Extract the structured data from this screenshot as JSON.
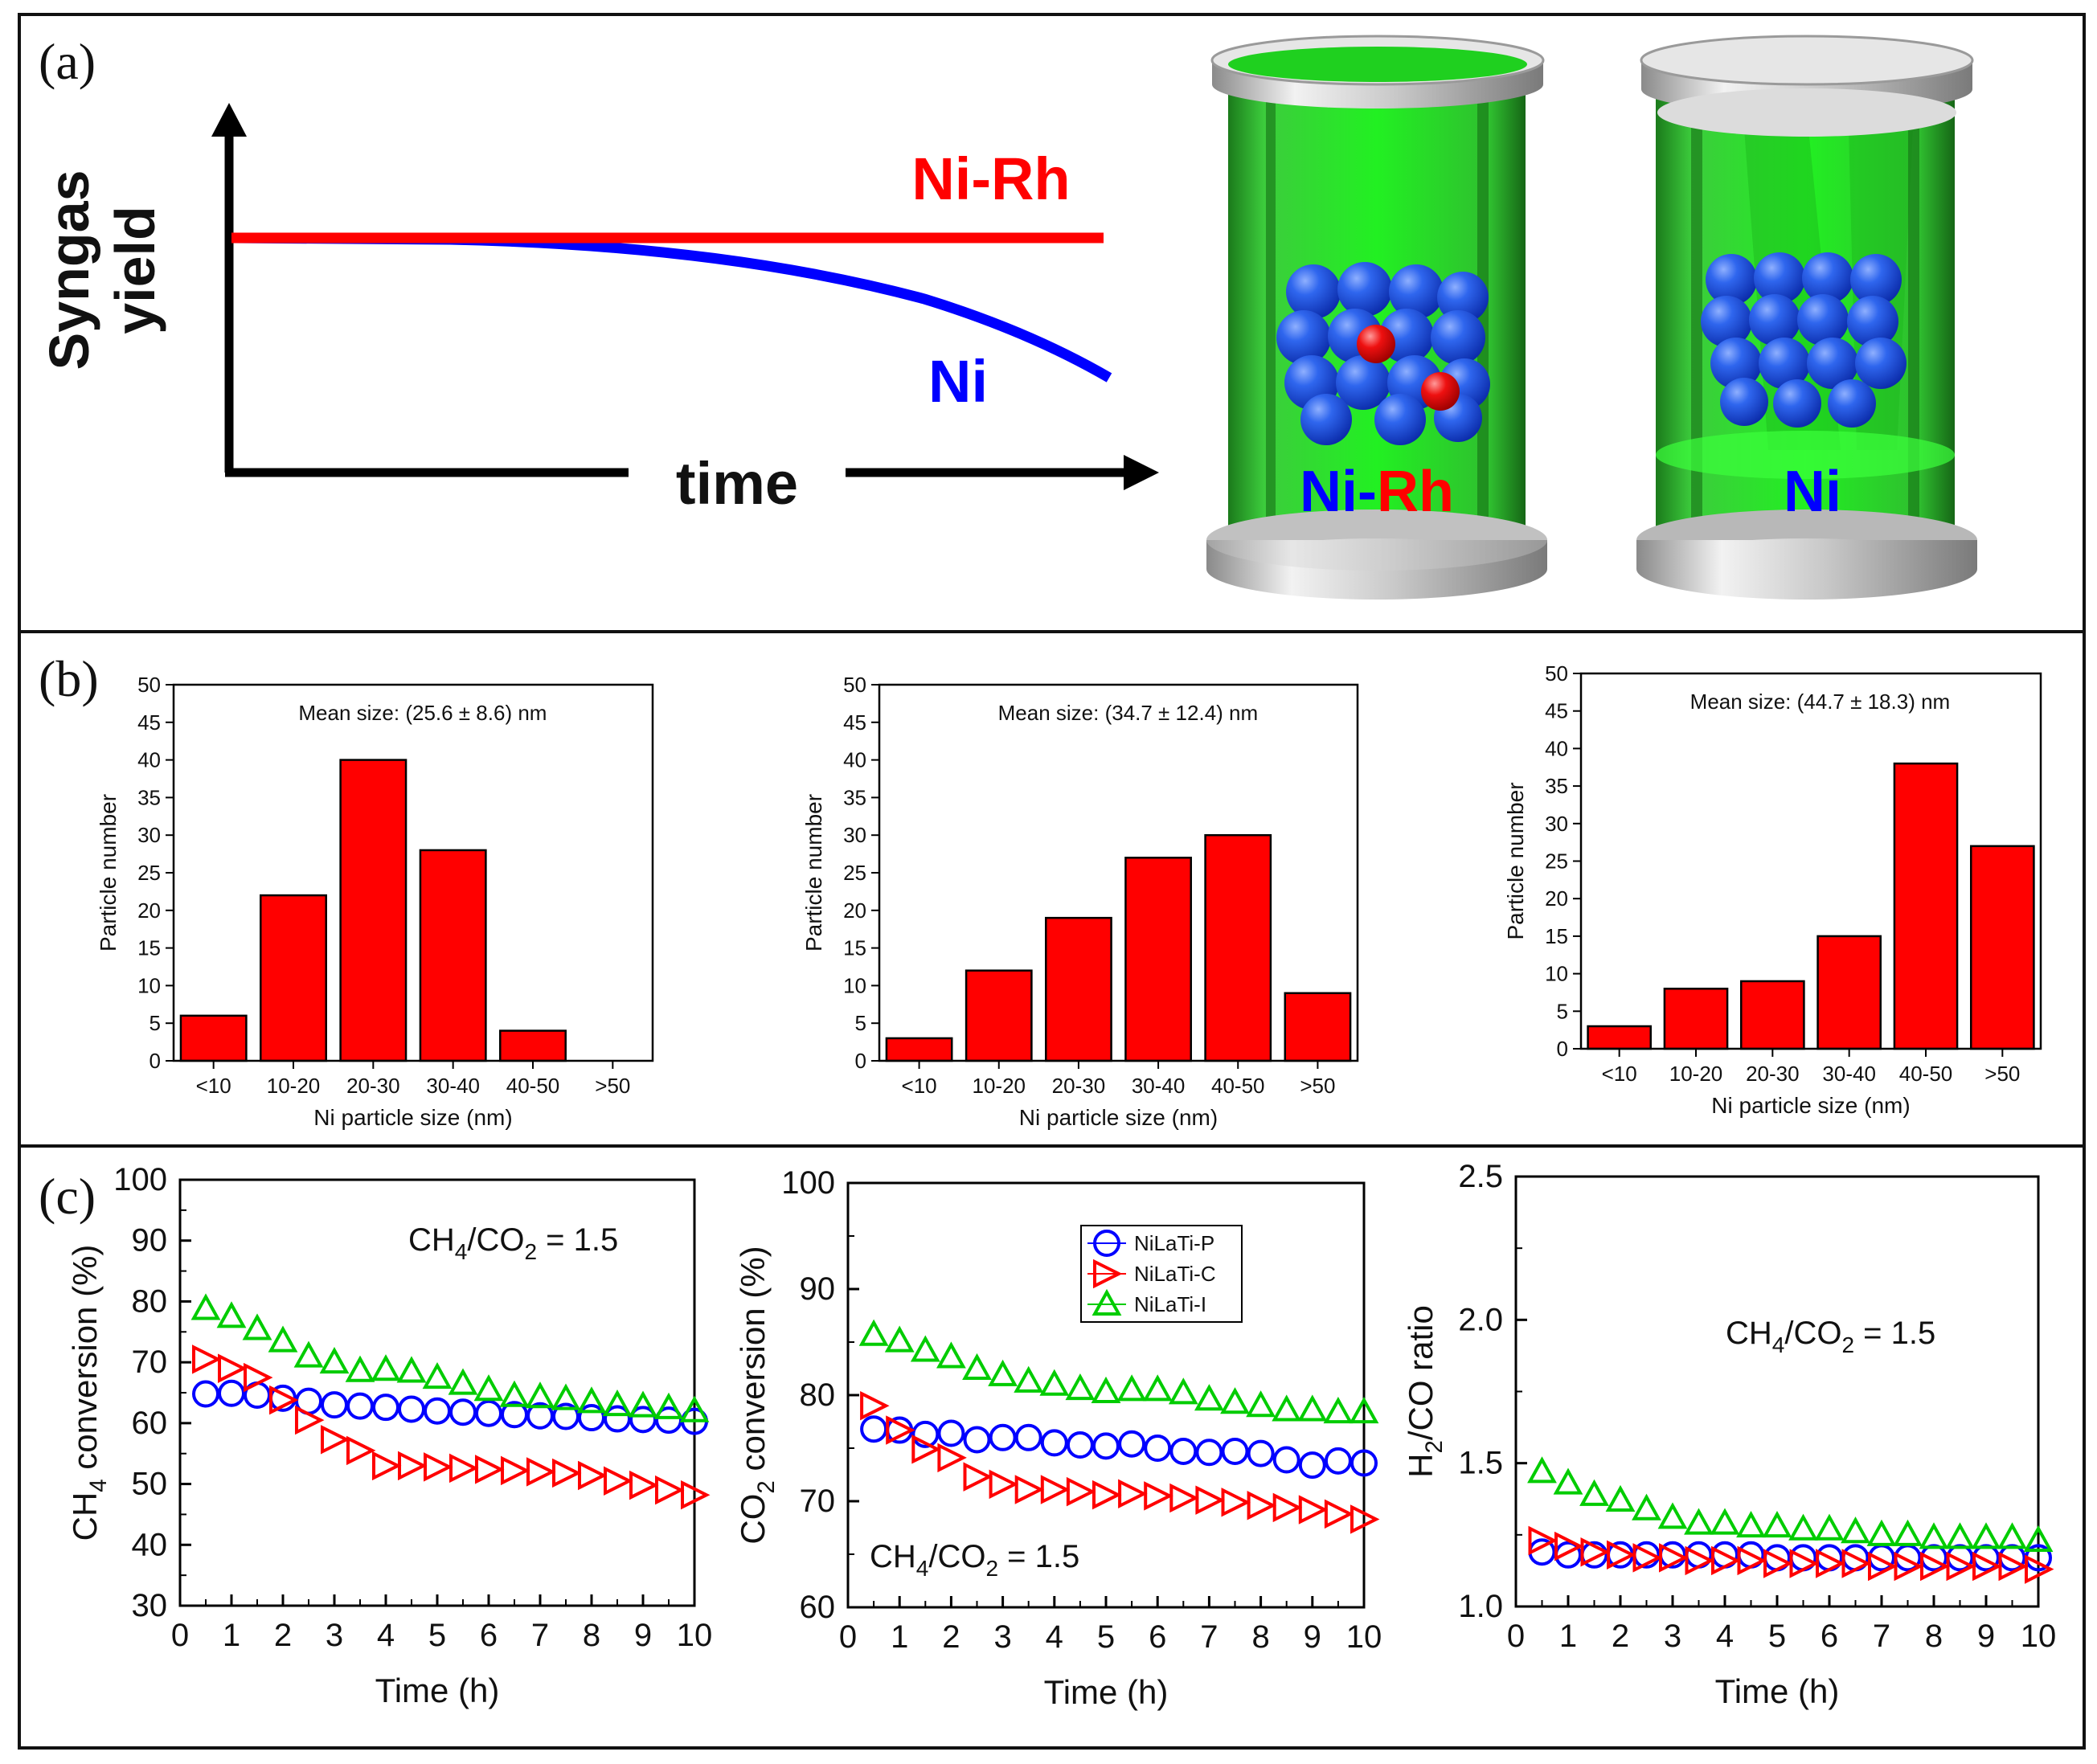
{
  "panels": {
    "a": {
      "label": "(a)"
    },
    "b": {
      "label": "(b)"
    },
    "c": {
      "label": "(c)"
    }
  },
  "schematic": {
    "y_axis_label_line1": "Syngas",
    "y_axis_label_line2": "yield",
    "x_axis_label": "time",
    "curves": [
      {
        "name": "Ni-Rh",
        "color": "#ff0000",
        "trend": "constant"
      },
      {
        "name": "Ni",
        "color": "#0000ff",
        "trend": "declining"
      }
    ],
    "reactors": [
      {
        "label_parts": [
          {
            "text": "Ni",
            "color": "#0000ff"
          },
          {
            "text": "-",
            "color": "#0000ff"
          },
          {
            "text": "Rh",
            "color": "#ff0000"
          }
        ]
      },
      {
        "label_parts": [
          {
            "text": "Ni",
            "color": "#0000ff"
          }
        ]
      }
    ],
    "colors": {
      "reactor_green": "#22ee22",
      "metal": "#c8c8c8",
      "ni_sphere": "#1f4fe0",
      "rh_sphere": "#e00000"
    }
  },
  "chart_data": [
    {
      "id": "hist-1",
      "type": "bar",
      "title": "",
      "annotation": "Mean size: (25.6 ± 8.6) nm",
      "categories": [
        "<10",
        "10-20",
        "20-30",
        "30-40",
        "40-50",
        ">50"
      ],
      "values": [
        6,
        22,
        40,
        28,
        4,
        0
      ],
      "xlabel": "Ni particle size (nm)",
      "ylabel": "Particle number",
      "ylim": [
        0,
        50
      ],
      "yticks": [
        "0",
        "5",
        "10",
        "15",
        "20",
        "25",
        "30",
        "35",
        "40",
        "45",
        "50"
      ],
      "bar_color": "#ff0000"
    },
    {
      "id": "hist-2",
      "type": "bar",
      "title": "",
      "annotation": "Mean size: (34.7 ± 12.4) nm",
      "categories": [
        "<10",
        "10-20",
        "20-30",
        "30-40",
        "40-50",
        ">50"
      ],
      "values": [
        3,
        12,
        19,
        27,
        30,
        9
      ],
      "xlabel": "Ni particle size (nm)",
      "ylabel": "Particle number",
      "ylim": [
        0,
        50
      ],
      "yticks": [
        "0",
        "5",
        "10",
        "15",
        "20",
        "25",
        "30",
        "35",
        "40",
        "45",
        "50"
      ],
      "bar_color": "#ff0000"
    },
    {
      "id": "hist-3",
      "type": "bar",
      "title": "",
      "annotation": "Mean size: (44.7 ± 18.3) nm",
      "categories": [
        "<10",
        "10-20",
        "20-30",
        "30-40",
        "40-50",
        ">50"
      ],
      "values": [
        3,
        8,
        9,
        15,
        38,
        27
      ],
      "xlabel": "Ni particle size (nm)",
      "ylabel": "Particle number",
      "ylim": [
        0,
        50
      ],
      "yticks": [
        "0",
        "5",
        "10",
        "15",
        "20",
        "25",
        "30",
        "35",
        "40",
        "45",
        "50"
      ],
      "bar_color": "#ff0000"
    },
    {
      "id": "ch4",
      "type": "scatter",
      "annotation_main": "CH",
      "annotation_sub": "4",
      "annotation_tail": "/CO",
      "annotation_sub2": "2",
      "annotation_end": " = 1.5",
      "ylabel_main": "CH",
      "ylabel_sub": "4",
      "ylabel_tail": " conversion (%)",
      "xlabel": "Time (h)",
      "xlim": [
        0,
        10
      ],
      "ylim": [
        30,
        100
      ],
      "xticks": [
        "0",
        "1",
        "2",
        "3",
        "4",
        "5",
        "6",
        "7",
        "8",
        "9",
        "10"
      ],
      "yticks": [
        "30",
        "40",
        "50",
        "60",
        "70",
        "80",
        "90",
        "100"
      ],
      "x": [
        0.5,
        1,
        1.5,
        2,
        2.5,
        3,
        3.5,
        4,
        4.5,
        5,
        5.5,
        6,
        6.5,
        7,
        7.5,
        8,
        8.5,
        9,
        9.5,
        10
      ],
      "series": [
        {
          "name": "NiLaTi-P",
          "marker": "circle",
          "color": "#0000ff",
          "values": [
            64.8,
            64.9,
            64.6,
            64.1,
            63.6,
            63.0,
            62.8,
            62.6,
            62.3,
            62.0,
            61.8,
            61.6,
            61.4,
            61.2,
            61.1,
            60.9,
            60.7,
            60.6,
            60.5,
            60.3
          ]
        },
        {
          "name": "NiLaTi-C",
          "marker": "triangle-right",
          "color": "#ff0000",
          "values": [
            70.5,
            69.0,
            67.5,
            63.8,
            60.5,
            57.3,
            55.5,
            53.0,
            53.0,
            52.8,
            52.6,
            52.4,
            52.2,
            52.0,
            51.8,
            51.4,
            50.5,
            49.8,
            49.0,
            48.2
          ]
        },
        {
          "name": "NiLaTi-I",
          "marker": "triangle-up",
          "color": "#00cc00",
          "values": [
            78.8,
            77.5,
            75.5,
            73.5,
            71.0,
            70.0,
            68.6,
            68.8,
            68.5,
            67.5,
            66.5,
            65.5,
            64.5,
            64.3,
            64.0,
            63.5,
            63.0,
            62.8,
            62.5,
            62.0
          ]
        }
      ]
    },
    {
      "id": "co2",
      "type": "scatter",
      "annotation_main": "CH",
      "annotation_sub": "4",
      "annotation_tail": "/CO",
      "annotation_sub2": "2",
      "annotation_end": " = 1.5",
      "ylabel_main": "CO",
      "ylabel_sub": "2",
      "ylabel_tail": " conversion (%)",
      "xlabel": "Time (h)",
      "xlim": [
        0,
        10
      ],
      "ylim": [
        60,
        100
      ],
      "xticks": [
        "0",
        "1",
        "2",
        "3",
        "4",
        "5",
        "6",
        "7",
        "8",
        "9",
        "10"
      ],
      "yticks": [
        "60",
        "70",
        "80",
        "90",
        "100"
      ],
      "legend": [
        "NiLaTi-P",
        "NiLaTi-C",
        "NiLaTi-I"
      ],
      "x": [
        0.5,
        1,
        1.5,
        2,
        2.5,
        3,
        3.5,
        4,
        4.5,
        5,
        5.5,
        6,
        6.5,
        7,
        7.5,
        8,
        8.5,
        9,
        9.5,
        10
      ],
      "series": [
        {
          "name": "NiLaTi-P",
          "marker": "circle",
          "color": "#0000ff",
          "values": [
            76.8,
            76.7,
            76.3,
            76.4,
            75.8,
            76.0,
            76.0,
            75.5,
            75.3,
            75.2,
            75.4,
            75.0,
            74.7,
            74.6,
            74.7,
            74.5,
            73.9,
            73.4,
            73.8,
            73.6
          ]
        },
        {
          "name": "NiLaTi-C",
          "marker": "triangle-right",
          "color": "#ff0000",
          "values": [
            79.0,
            76.7,
            74.9,
            74.1,
            72.3,
            71.6,
            71.1,
            71.1,
            70.9,
            70.6,
            70.7,
            70.5,
            70.3,
            70.1,
            69.9,
            69.6,
            69.4,
            69.2,
            68.8,
            68.3
          ]
        },
        {
          "name": "NiLaTi-I",
          "marker": "triangle-up",
          "color": "#00cc00",
          "values": [
            85.7,
            85.1,
            84.2,
            83.6,
            82.5,
            81.9,
            81.3,
            81.0,
            80.6,
            80.3,
            80.5,
            80.5,
            80.2,
            79.6,
            79.3,
            79.0,
            78.6,
            78.6,
            78.4,
            78.4
          ]
        }
      ]
    },
    {
      "id": "h2co",
      "type": "scatter",
      "annotation_main": "CH",
      "annotation_sub": "4",
      "annotation_tail": "/CO",
      "annotation_sub2": "2",
      "annotation_end": " = 1.5",
      "ylabel_main": "H",
      "ylabel_sub": "2",
      "ylabel_tail": "/CO ratio",
      "xlabel": "Time (h)",
      "xlim": [
        0,
        10
      ],
      "ylim": [
        1.0,
        2.5
      ],
      "xticks": [
        "0",
        "1",
        "2",
        "3",
        "4",
        "5",
        "6",
        "7",
        "8",
        "9",
        "10"
      ],
      "yticks": [
        "1.0",
        "1.5",
        "2.0",
        "2.5"
      ],
      "x": [
        0.5,
        1,
        1.5,
        2,
        2.5,
        3,
        3.5,
        4,
        4.5,
        5,
        5.5,
        6,
        6.5,
        7,
        7.5,
        8,
        8.5,
        9,
        9.5,
        10
      ],
      "series": [
        {
          "name": "NiLaTi-P",
          "marker": "circle",
          "color": "#0000ff",
          "values": [
            1.19,
            1.18,
            1.18,
            1.18,
            1.18,
            1.18,
            1.18,
            1.18,
            1.18,
            1.17,
            1.17,
            1.17,
            1.17,
            1.17,
            1.17,
            1.17,
            1.17,
            1.17,
            1.17,
            1.17
          ]
        },
        {
          "name": "NiLaTi-C",
          "marker": "triangle-right",
          "color": "#ff0000",
          "values": [
            1.23,
            1.21,
            1.19,
            1.18,
            1.17,
            1.17,
            1.16,
            1.16,
            1.16,
            1.15,
            1.15,
            1.15,
            1.15,
            1.14,
            1.14,
            1.14,
            1.14,
            1.14,
            1.14,
            1.13
          ]
        },
        {
          "name": "NiLaTi-I",
          "marker": "triangle-up",
          "color": "#00cc00",
          "values": [
            1.47,
            1.43,
            1.39,
            1.37,
            1.34,
            1.31,
            1.29,
            1.29,
            1.28,
            1.28,
            1.27,
            1.27,
            1.26,
            1.25,
            1.25,
            1.24,
            1.24,
            1.24,
            1.24,
            1.23
          ]
        }
      ]
    }
  ]
}
